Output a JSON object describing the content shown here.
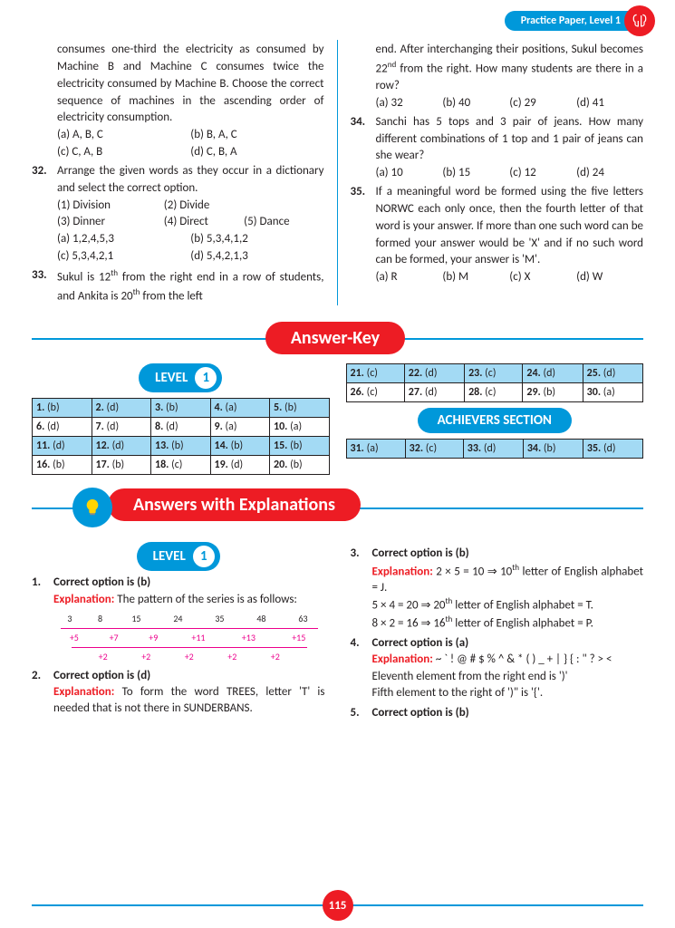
{
  "header": {
    "label": "Practice Paper, Level 1"
  },
  "colors": {
    "blue": "#0098da",
    "red": "#ed1c24",
    "cellBlue": "#a3daf4",
    "text": "#231f20",
    "pink": "#ec008c"
  },
  "questions": {
    "cont31": "consumes one-third the electricity as consumed by Machine B and Machine C consumes twice the electricity consumed by Machine B. Choose the correct sequence of machines in the ascending order of electricity consumption.",
    "opts31": [
      "(a) A, B, C",
      "(b) B, A, C",
      "(c) C, A, B",
      "(d) C, B, A"
    ],
    "q32": {
      "num": "32.",
      "text": "Arrange the given words as they occur in a dictionary and select the correct option.",
      "items": [
        "(1) Division",
        "(2) Divide",
        "(3) Dinner",
        "(4) Direct",
        "(5) Dance"
      ],
      "opts": [
        "(a) 1,2,4,5,3",
        "(b) 5,3,4,1,2",
        "(c) 5,3,4,2,1",
        "(d) 5,4,2,1,3"
      ]
    },
    "q33": {
      "num": "33.",
      "text_a": "Sukul is 12",
      "sup_a": "th",
      "text_b": " from the right end in a row of students, and Ankita is 20",
      "sup_b": "th",
      "text_c": " from the left",
      "text_r1": "end. After interchanging their positions, Sukul becomes 22",
      "sup_r": "nd",
      "text_r2": " from the right. How many students are there in a row?",
      "opts": [
        "(a) 32",
        "(b) 40",
        "(c) 29",
        "(d) 41"
      ]
    },
    "q34": {
      "num": "34.",
      "text": "Sanchi has 5 tops and 3 pair of jeans. How many different combinations of 1 top and 1 pair of jeans can she wear?",
      "opts": [
        "(a) 10",
        "(b) 15",
        "(c) 12",
        "(d) 24"
      ]
    },
    "q35": {
      "num": "35.",
      "text": "If a meaningful word be formed using the five letters NORWC each only once, then the fourth letter of that word is your answer. If more than one such word can be formed your answer would be 'X' and if no such word can be formed, your answer is 'M'.",
      "opts": [
        "(a) R",
        "(b) M",
        "(c) X",
        "(d) W"
      ]
    }
  },
  "answerKey": {
    "title": "Answer-Key",
    "level_label": "LEVEL",
    "level_num": "1",
    "ach_label": "ACHIEVERS SECTION",
    "table1": [
      [
        "1. (b)",
        "2. (d)",
        "3. (b)",
        "4. (a)",
        "5. (b)"
      ],
      [
        "6. (d)",
        "7. (d)",
        "8. (d)",
        "9. (a)",
        "10. (a)"
      ],
      [
        "11. (d)",
        "12. (d)",
        "13. (b)",
        "14. (b)",
        "15. (b)"
      ],
      [
        "16. (b)",
        "17. (b)",
        "18. (c)",
        "19. (d)",
        "20. (b)"
      ]
    ],
    "table2": [
      [
        "21. (c)",
        "22. (d)",
        "23. (c)",
        "24. (d)",
        "25. (d)"
      ],
      [
        "26. (c)",
        "27. (d)",
        "28. (c)",
        "29. (b)",
        "30. (a)"
      ]
    ],
    "table3": [
      [
        "31. (a)",
        "32. (c)",
        "33. (d)",
        "34. (b)",
        "35. (d)"
      ]
    ]
  },
  "explanations": {
    "title": "Answers with Explanations",
    "exp1": {
      "num": "1.",
      "head": "Correct option is (b)",
      "label": "Explanation:",
      "text": " The pattern of the series is as follows:",
      "series": {
        "nums": [
          "3",
          "8",
          "15",
          "24",
          "35",
          "48",
          "63"
        ],
        "d1": [
          "+5",
          "+7",
          "+9",
          "+11",
          "+13",
          "+15"
        ],
        "d2": [
          "+2",
          "+2",
          "+2",
          "+2",
          "+2"
        ]
      }
    },
    "exp2": {
      "num": "2.",
      "head": "Correct option is (d)",
      "label": "Explanation:",
      "text": " To form the word TREES, letter 'T' is needed that is not there in SUNDERBANS."
    },
    "exp3": {
      "num": "3.",
      "head": "Correct option is (b)",
      "label": "Explanation:",
      "l1a": " 2 × 5 = 10 ⇒ 10",
      "l1sup": "th",
      "l1b": " letter of English alphabet = J.",
      "l2a": "5 × 4 = 20 ⇒ 20",
      "l2sup": "th",
      "l2b": " letter of English alphabet = T.",
      "l3a": "8 × 2 = 16 ⇒ 16",
      "l3sup": "th",
      "l3b": " letter of English alphabet = P."
    },
    "exp4": {
      "num": "4.",
      "head": "Correct option is (a)",
      "label": "Explanation:",
      "text": " ~ ` ! @ # $ % ^ & * ( ) _ + | } { : \" ? > <",
      "l2": "Eleventh element from the right end is ')'",
      "l3": "Fifth element to the right of ')\" is '{'."
    },
    "exp5": {
      "num": "5.",
      "head": "Correct option is (b)"
    }
  },
  "pageNumber": "115"
}
